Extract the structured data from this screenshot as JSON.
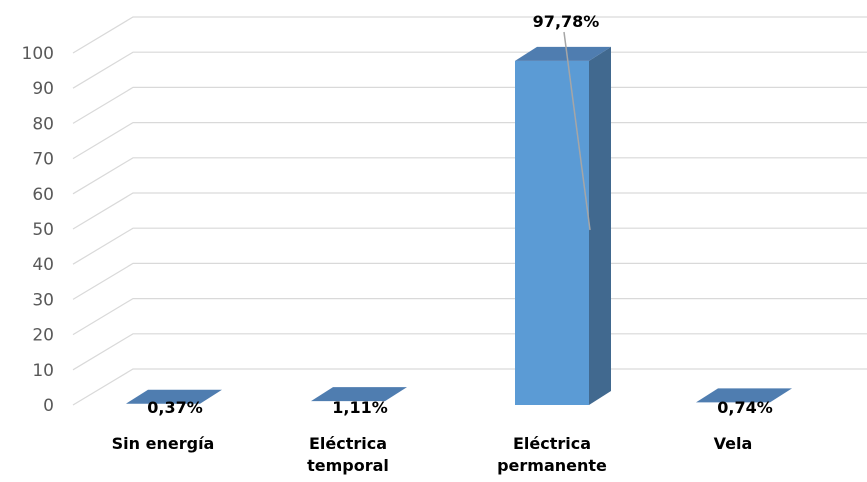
{
  "chart_data": {
    "type": "bar",
    "style": "3d-column",
    "categories": [
      [
        "Sin energía"
      ],
      [
        "Eléctrica",
        "temporal"
      ],
      [
        "Eléctrica",
        "permanente"
      ],
      [
        "Vela"
      ]
    ],
    "values": [
      0.37,
      1.11,
      97.78,
      0.74
    ],
    "data_labels": [
      "0,37%",
      "1,11%",
      "97,78%",
      "0,74%"
    ],
    "ylim": [
      0,
      100
    ],
    "yticks": [
      0,
      10,
      20,
      30,
      40,
      50,
      60,
      70,
      80,
      90,
      100
    ],
    "grid": true,
    "legend": "none",
    "title": "",
    "xlabel": "",
    "ylabel": "",
    "colors": {
      "bar_front": "#5B9BD5",
      "bar_side": "#41698F",
      "bar_top": "#4F7DB0",
      "gridline": "#D9D9D9",
      "leader_line": "#A6A6A6",
      "tick_text": "#595959",
      "label_text": "#000000"
    }
  }
}
